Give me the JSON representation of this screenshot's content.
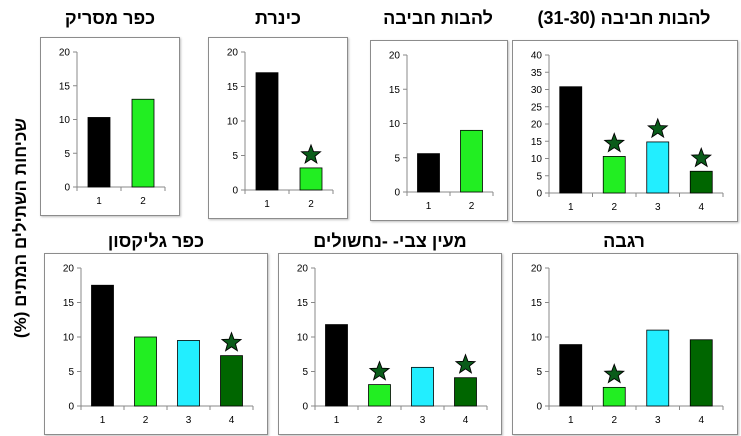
{
  "y_axis_label": "שכיחות השתילים המתים (%)",
  "colors": {
    "1": "#000000",
    "2": "#22ee22",
    "3": "#22eeff",
    "4": "#006600",
    "star": "#0a5c1a"
  },
  "chart_data": [
    {
      "id": "kfar-masarik",
      "type": "bar",
      "title": "כפר מסריק",
      "categories": [
        "1",
        "2"
      ],
      "values": [
        10.3,
        13.0
      ],
      "stars": [
        false,
        false
      ],
      "ylim": [
        0,
        20
      ],
      "yticks": [
        0,
        5,
        10,
        15,
        20
      ]
    },
    {
      "id": "kinneret",
      "type": "bar",
      "title": "כינרת",
      "categories": [
        "1",
        "2"
      ],
      "values": [
        17.0,
        3.2
      ],
      "stars": [
        false,
        true
      ],
      "ylim": [
        0,
        20
      ],
      "yticks": [
        0,
        5,
        10,
        15,
        20
      ]
    },
    {
      "id": "lehavot-haviva",
      "type": "bar",
      "title": "להבות חביבה",
      "categories": [
        "1",
        "2"
      ],
      "values": [
        5.6,
        9.0
      ],
      "stars": [
        false,
        false
      ],
      "ylim": [
        0,
        20
      ],
      "yticks": [
        0,
        5,
        10,
        15,
        20
      ]
    },
    {
      "id": "lehavot-haviva-31-30",
      "type": "bar",
      "title": "להבות חביבה (31-30)",
      "categories": [
        "1",
        "2",
        "3",
        "4"
      ],
      "values": [
        30.8,
        10.6,
        14.8,
        6.3
      ],
      "stars": [
        false,
        true,
        true,
        true
      ],
      "ylim": [
        0,
        40
      ],
      "yticks": [
        0,
        5,
        10,
        15,
        20,
        25,
        30,
        35,
        40
      ]
    },
    {
      "id": "kfar-glikson",
      "type": "bar",
      "title": "כפר גליקסון",
      "categories": [
        "1",
        "2",
        "3",
        "4"
      ],
      "values": [
        17.5,
        10.0,
        9.5,
        7.3
      ],
      "stars": [
        false,
        false,
        false,
        true
      ],
      "ylim": [
        0,
        20
      ],
      "yticks": [
        0,
        5,
        10,
        15,
        20
      ]
    },
    {
      "id": "maayan-tzvi",
      "type": "bar",
      "title": "מעין צבי- -נחשולים",
      "categories": [
        "1",
        "2",
        "3",
        "4"
      ],
      "values": [
        11.8,
        3.1,
        5.6,
        4.1
      ],
      "stars": [
        false,
        true,
        false,
        true
      ],
      "ylim": [
        0,
        20
      ],
      "yticks": [
        0,
        5,
        10,
        15,
        20
      ]
    },
    {
      "id": "regba",
      "type": "bar",
      "title": "רגבה",
      "categories": [
        "1",
        "2",
        "3",
        "4"
      ],
      "values": [
        8.9,
        2.7,
        11.0,
        9.6
      ],
      "stars": [
        false,
        true,
        false,
        false
      ],
      "ylim": [
        0,
        20
      ],
      "yticks": [
        0,
        5,
        10,
        15,
        20
      ]
    }
  ]
}
